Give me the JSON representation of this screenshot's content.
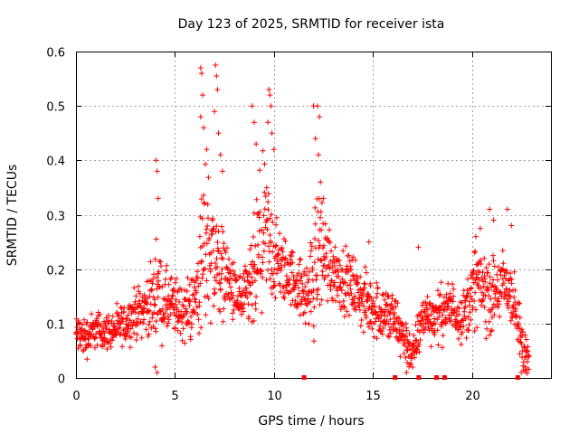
{
  "chart_data": {
    "type": "scatter",
    "title": "Day 123 of 2025, SRMTID for receiver ista",
    "xlabel": "GPS time / hours",
    "ylabel": "SRMTID / TECUs",
    "xlim": [
      0,
      24
    ],
    "ylim": [
      0,
      0.6
    ],
    "xticks": [
      0,
      5,
      10,
      15,
      20
    ],
    "yticks": [
      0,
      0.1,
      0.2,
      0.3,
      0.4,
      0.5,
      0.6
    ],
    "xtick_labels": [
      "0",
      "5",
      "10",
      "15",
      "20"
    ],
    "ytick_labels": [
      "0",
      "0.1",
      "0.2",
      "0.3",
      "0.4",
      "0.5",
      "0.6"
    ],
    "grid": true,
    "series": [
      {
        "name": "SRMTID",
        "marker": "+",
        "color": "#ff0000",
        "envelope": {
          "x": [
            0.0,
            0.5,
            1.0,
            1.5,
            2.0,
            2.5,
            3.0,
            3.5,
            3.9,
            4.1,
            4.3,
            5.0,
            5.5,
            6.0,
            6.3,
            6.6,
            7.0,
            7.3,
            7.6,
            8.0,
            8.5,
            9.0,
            9.3,
            9.6,
            10.0,
            10.4,
            10.8,
            11.2,
            11.6,
            12.0,
            12.3,
            12.6,
            13.0,
            13.5,
            14.0,
            14.5,
            15.0,
            15.5,
            16.0,
            16.5,
            16.8,
            17.0,
            17.3,
            17.6,
            18.0,
            18.5,
            19.0,
            19.5,
            20.0,
            20.3,
            20.6,
            21.0,
            21.5,
            22.0,
            22.3,
            22.6,
            22.9
          ],
          "center": [
            0.08,
            0.075,
            0.09,
            0.085,
            0.09,
            0.1,
            0.12,
            0.13,
            0.14,
            0.18,
            0.14,
            0.13,
            0.12,
            0.14,
            0.2,
            0.26,
            0.22,
            0.2,
            0.19,
            0.15,
            0.14,
            0.18,
            0.24,
            0.26,
            0.22,
            0.2,
            0.19,
            0.17,
            0.15,
            0.18,
            0.25,
            0.22,
            0.2,
            0.18,
            0.17,
            0.14,
            0.13,
            0.12,
            0.11,
            0.08,
            0.06,
            0.04,
            0.08,
            0.12,
            0.11,
            0.12,
            0.13,
            0.11,
            0.15,
            0.18,
            0.16,
            0.15,
            0.17,
            0.16,
            0.1,
            0.05,
            0.04
          ],
          "spread": [
            0.035,
            0.035,
            0.03,
            0.03,
            0.03,
            0.035,
            0.04,
            0.045,
            0.06,
            0.1,
            0.06,
            0.05,
            0.05,
            0.06,
            0.12,
            0.14,
            0.11,
            0.08,
            0.06,
            0.05,
            0.05,
            0.1,
            0.13,
            0.12,
            0.08,
            0.06,
            0.05,
            0.05,
            0.05,
            0.1,
            0.12,
            0.08,
            0.06,
            0.05,
            0.05,
            0.05,
            0.05,
            0.05,
            0.05,
            0.04,
            0.04,
            0.03,
            0.04,
            0.04,
            0.04,
            0.045,
            0.045,
            0.04,
            0.06,
            0.07,
            0.07,
            0.06,
            0.06,
            0.06,
            0.05,
            0.04,
            0.03
          ]
        },
        "peaks": [
          [
            4.05,
            0.4
          ],
          [
            4.1,
            0.38
          ],
          [
            4.15,
            0.33
          ],
          [
            4.1,
            0.01
          ],
          [
            4.0,
            0.02
          ],
          [
            6.3,
            0.57
          ],
          [
            6.35,
            0.56
          ],
          [
            6.4,
            0.52
          ],
          [
            6.3,
            0.48
          ],
          [
            6.45,
            0.46
          ],
          [
            7.05,
            0.575
          ],
          [
            7.1,
            0.555
          ],
          [
            7.15,
            0.53
          ],
          [
            7.0,
            0.49
          ],
          [
            7.2,
            0.45
          ],
          [
            7.3,
            0.41
          ],
          [
            7.4,
            0.38
          ],
          [
            6.6,
            0.42
          ],
          [
            8.9,
            0.5
          ],
          [
            9.0,
            0.47
          ],
          [
            9.1,
            0.43
          ],
          [
            9.75,
            0.53
          ],
          [
            9.8,
            0.52
          ],
          [
            9.85,
            0.5
          ],
          [
            9.7,
            0.47
          ],
          [
            9.9,
            0.45
          ],
          [
            10.0,
            0.42
          ],
          [
            12.0,
            0.5
          ],
          [
            12.2,
            0.5
          ],
          [
            12.3,
            0.48
          ],
          [
            12.1,
            0.44
          ],
          [
            12.25,
            0.41
          ],
          [
            12.35,
            0.36
          ],
          [
            12.5,
            0.33
          ],
          [
            14.8,
            0.25
          ],
          [
            16.7,
            0.01
          ],
          [
            17.0,
            0.02
          ],
          [
            17.3,
            0.24
          ],
          [
            20.2,
            0.26
          ],
          [
            20.9,
            0.31
          ],
          [
            21.1,
            0.29
          ],
          [
            21.8,
            0.31
          ],
          [
            22.0,
            0.28
          ],
          [
            22.5,
            0.01
          ],
          [
            22.7,
            0.02
          ],
          [
            22.8,
            0.05
          ]
        ],
        "zero_points": [
          11.5,
          16.1,
          17.3,
          18.2,
          18.6,
          22.3
        ]
      }
    ]
  }
}
